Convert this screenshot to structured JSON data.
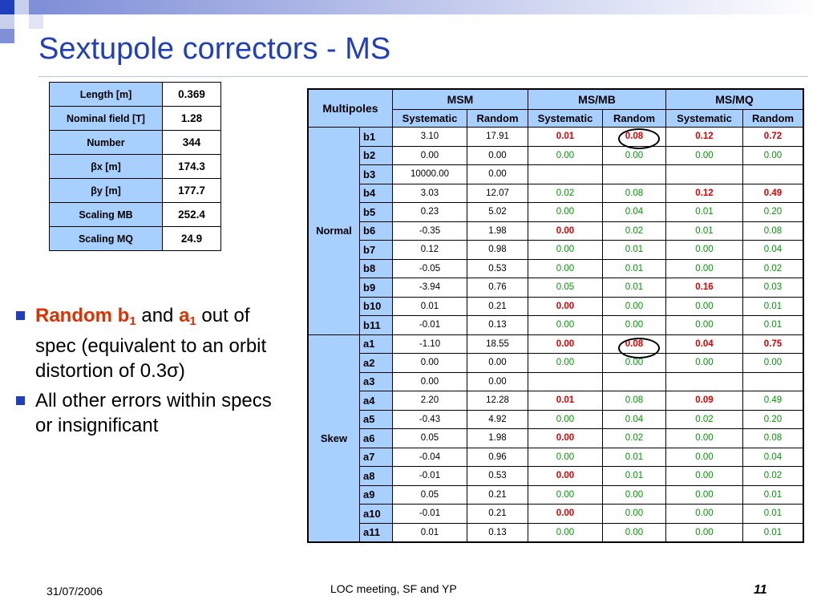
{
  "slide": {
    "title": "Sextupole correctors - MS"
  },
  "info_table": [
    {
      "label": "Length [m]",
      "value": "0.369"
    },
    {
      "label": "Nominal field [T]",
      "value": "1.28"
    },
    {
      "label": "Number",
      "value": "344"
    },
    {
      "label": "βx [m]",
      "value": "174.3"
    },
    {
      "label": "βy [m]",
      "value": "177.7"
    },
    {
      "label": "Scaling MB",
      "value": "252.4"
    },
    {
      "label": "Scaling MQ",
      "value": "24.9"
    }
  ],
  "multipole_table": {
    "corner": "Multipoles",
    "groups": [
      "MSM",
      "MS/MB",
      "MS/MQ"
    ],
    "subheaders": [
      "Systematic",
      "Random",
      "Systematic",
      "Random",
      "Systematic",
      "Random"
    ],
    "sections": [
      {
        "name": "Normal",
        "rows": [
          {
            "name": "b1",
            "cells": [
              {
                "v": "3.10",
                "c": "k"
              },
              {
                "v": "17.91",
                "c": "k"
              },
              {
                "v": "0.01",
                "c": "r"
              },
              {
                "v": "0.08",
                "c": "r"
              },
              {
                "v": "0.12",
                "c": "r"
              },
              {
                "v": "0.72",
                "c": "r"
              }
            ]
          },
          {
            "name": "b2",
            "cells": [
              {
                "v": "0.00",
                "c": "k"
              },
              {
                "v": "0.00",
                "c": "k"
              },
              {
                "v": "0.00",
                "c": "g"
              },
              {
                "v": "0.00",
                "c": "g"
              },
              {
                "v": "0.00",
                "c": "g"
              },
              {
                "v": "0.00",
                "c": "g"
              }
            ]
          },
          {
            "name": "b3",
            "cells": [
              {
                "v": "10000.00",
                "c": "k"
              },
              {
                "v": "0.00",
                "c": "k"
              },
              {
                "v": "",
                "c": "k"
              },
              {
                "v": "",
                "c": "k"
              },
              {
                "v": "",
                "c": "k"
              },
              {
                "v": "",
                "c": "k"
              }
            ]
          },
          {
            "name": "b4",
            "cells": [
              {
                "v": "3.03",
                "c": "k"
              },
              {
                "v": "12.07",
                "c": "k"
              },
              {
                "v": "0.02",
                "c": "g"
              },
              {
                "v": "0.08",
                "c": "g"
              },
              {
                "v": "0.12",
                "c": "r"
              },
              {
                "v": "0.49",
                "c": "r"
              }
            ]
          },
          {
            "name": "b5",
            "cells": [
              {
                "v": "0.23",
                "c": "k"
              },
              {
                "v": "5.02",
                "c": "k"
              },
              {
                "v": "0.00",
                "c": "g"
              },
              {
                "v": "0.04",
                "c": "g"
              },
              {
                "v": "0.01",
                "c": "g"
              },
              {
                "v": "0.20",
                "c": "g"
              }
            ]
          },
          {
            "name": "b6",
            "cells": [
              {
                "v": "-0.35",
                "c": "k"
              },
              {
                "v": "1.98",
                "c": "k"
              },
              {
                "v": "0.00",
                "c": "r"
              },
              {
                "v": "0.02",
                "c": "g"
              },
              {
                "v": "0.01",
                "c": "g"
              },
              {
                "v": "0.08",
                "c": "g"
              }
            ]
          },
          {
            "name": "b7",
            "cells": [
              {
                "v": "0.12",
                "c": "k"
              },
              {
                "v": "0.98",
                "c": "k"
              },
              {
                "v": "0.00",
                "c": "g"
              },
              {
                "v": "0.01",
                "c": "g"
              },
              {
                "v": "0.00",
                "c": "g"
              },
              {
                "v": "0.04",
                "c": "g"
              }
            ]
          },
          {
            "name": "b8",
            "cells": [
              {
                "v": "-0.05",
                "c": "k"
              },
              {
                "v": "0.53",
                "c": "k"
              },
              {
                "v": "0.00",
                "c": "g"
              },
              {
                "v": "0.01",
                "c": "g"
              },
              {
                "v": "0.00",
                "c": "g"
              },
              {
                "v": "0.02",
                "c": "g"
              }
            ]
          },
          {
            "name": "b9",
            "cells": [
              {
                "v": "-3.94",
                "c": "k"
              },
              {
                "v": "0.76",
                "c": "k"
              },
              {
                "v": "0.05",
                "c": "g"
              },
              {
                "v": "0.01",
                "c": "g"
              },
              {
                "v": "0.16",
                "c": "r"
              },
              {
                "v": "0.03",
                "c": "g"
              }
            ]
          },
          {
            "name": "b10",
            "cells": [
              {
                "v": "0.01",
                "c": "k"
              },
              {
                "v": "0.21",
                "c": "k"
              },
              {
                "v": "0.00",
                "c": "r"
              },
              {
                "v": "0.00",
                "c": "g"
              },
              {
                "v": "0.00",
                "c": "g"
              },
              {
                "v": "0.01",
                "c": "g"
              }
            ]
          },
          {
            "name": "b11",
            "cells": [
              {
                "v": "-0.01",
                "c": "k"
              },
              {
                "v": "0.13",
                "c": "k"
              },
              {
                "v": "0.00",
                "c": "g"
              },
              {
                "v": "0.00",
                "c": "g"
              },
              {
                "v": "0.00",
                "c": "g"
              },
              {
                "v": "0.01",
                "c": "g"
              }
            ]
          }
        ]
      },
      {
        "name": "Skew",
        "rows": [
          {
            "name": "a1",
            "cells": [
              {
                "v": "-1.10",
                "c": "k"
              },
              {
                "v": "18.55",
                "c": "k"
              },
              {
                "v": "0.00",
                "c": "r"
              },
              {
                "v": "0.08",
                "c": "r"
              },
              {
                "v": "0.04",
                "c": "r"
              },
              {
                "v": "0.75",
                "c": "r"
              }
            ]
          },
          {
            "name": "a2",
            "cells": [
              {
                "v": "0.00",
                "c": "k"
              },
              {
                "v": "0.00",
                "c": "k"
              },
              {
                "v": "0.00",
                "c": "g"
              },
              {
                "v": "0.00",
                "c": "g"
              },
              {
                "v": "0.00",
                "c": "g"
              },
              {
                "v": "0.00",
                "c": "g"
              }
            ]
          },
          {
            "name": "a3",
            "cells": [
              {
                "v": "0.00",
                "c": "k"
              },
              {
                "v": "0.00",
                "c": "k"
              },
              {
                "v": "",
                "c": "k"
              },
              {
                "v": "",
                "c": "k"
              },
              {
                "v": "",
                "c": "k"
              },
              {
                "v": "",
                "c": "k"
              }
            ]
          },
          {
            "name": "a4",
            "cells": [
              {
                "v": "2.20",
                "c": "k"
              },
              {
                "v": "12.28",
                "c": "k"
              },
              {
                "v": "0.01",
                "c": "r"
              },
              {
                "v": "0.08",
                "c": "g"
              },
              {
                "v": "0.09",
                "c": "r"
              },
              {
                "v": "0.49",
                "c": "g"
              }
            ]
          },
          {
            "name": "a5",
            "cells": [
              {
                "v": "-0.43",
                "c": "k"
              },
              {
                "v": "4.92",
                "c": "k"
              },
              {
                "v": "0.00",
                "c": "g"
              },
              {
                "v": "0.04",
                "c": "g"
              },
              {
                "v": "0.02",
                "c": "g"
              },
              {
                "v": "0.20",
                "c": "g"
              }
            ]
          },
          {
            "name": "a6",
            "cells": [
              {
                "v": "0.05",
                "c": "k"
              },
              {
                "v": "1.98",
                "c": "k"
              },
              {
                "v": "0.00",
                "c": "r"
              },
              {
                "v": "0.02",
                "c": "g"
              },
              {
                "v": "0.00",
                "c": "g"
              },
              {
                "v": "0.08",
                "c": "g"
              }
            ]
          },
          {
            "name": "a7",
            "cells": [
              {
                "v": "-0.04",
                "c": "k"
              },
              {
                "v": "0.96",
                "c": "k"
              },
              {
                "v": "0.00",
                "c": "g"
              },
              {
                "v": "0.01",
                "c": "g"
              },
              {
                "v": "0.00",
                "c": "g"
              },
              {
                "v": "0.04",
                "c": "g"
              }
            ]
          },
          {
            "name": "a8",
            "cells": [
              {
                "v": "-0.01",
                "c": "k"
              },
              {
                "v": "0.53",
                "c": "k"
              },
              {
                "v": "0.00",
                "c": "r"
              },
              {
                "v": "0.01",
                "c": "g"
              },
              {
                "v": "0.00",
                "c": "g"
              },
              {
                "v": "0.02",
                "c": "g"
              }
            ]
          },
          {
            "name": "a9",
            "cells": [
              {
                "v": "0.05",
                "c": "k"
              },
              {
                "v": "0.21",
                "c": "k"
              },
              {
                "v": "0.00",
                "c": "g"
              },
              {
                "v": "0.00",
                "c": "g"
              },
              {
                "v": "0.00",
                "c": "g"
              },
              {
                "v": "0.01",
                "c": "g"
              }
            ]
          },
          {
            "name": "a10",
            "cells": [
              {
                "v": "-0.01",
                "c": "k"
              },
              {
                "v": "0.21",
                "c": "k"
              },
              {
                "v": "0.00",
                "c": "r"
              },
              {
                "v": "0.00",
                "c": "g"
              },
              {
                "v": "0.00",
                "c": "g"
              },
              {
                "v": "0.01",
                "c": "g"
              }
            ]
          },
          {
            "name": "a11",
            "cells": [
              {
                "v": "0.01",
                "c": "k"
              },
              {
                "v": "0.13",
                "c": "k"
              },
              {
                "v": "0.00",
                "c": "g"
              },
              {
                "v": "0.00",
                "c": "g"
              },
              {
                "v": "0.00",
                "c": "g"
              },
              {
                "v": "0.01",
                "c": "g"
              }
            ]
          }
        ]
      }
    ]
  },
  "bullets": {
    "b1": {
      "random": "Random b",
      "sub1": "1",
      "and": " and ",
      "a": "a",
      "sub2": "1",
      "rest": " out of spec (equivalent to an orbit distortion of 0.3σ)"
    },
    "b2": "All other errors within specs or insignificant"
  },
  "footer": {
    "date": "31/07/2006",
    "center": "LOC meeting, SF and YP",
    "page": "11"
  },
  "colors": {
    "title": "#1f3fbf",
    "header_fill": "#a8d0ff",
    "out_of_spec": "#e00000",
    "within_spec": "#009900",
    "bullet_highlight": "#e03000"
  }
}
